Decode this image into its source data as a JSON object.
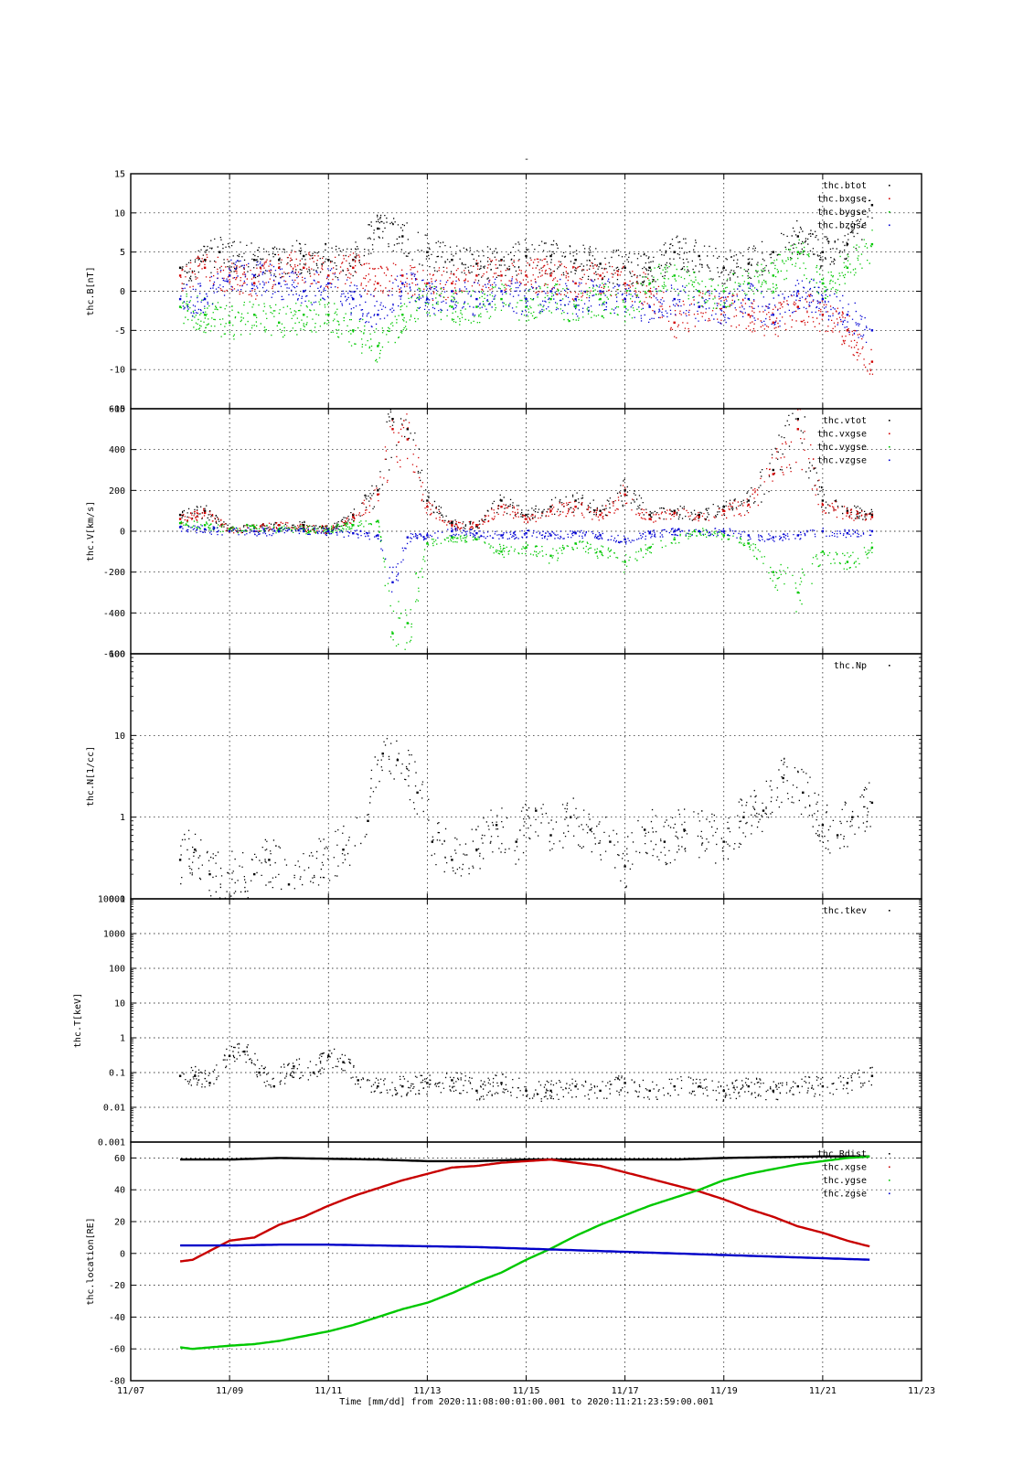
{
  "figure": {
    "title": "-",
    "x_axis_label": "Time [mm/dd]  from 2020:11:08:00:01:00.001  to  2020:11:21:23:59:00.001",
    "x_ticks": [
      "11/07",
      "11/09",
      "11/11",
      "11/13",
      "11/15",
      "11/17",
      "11/19",
      "11/21",
      "11/23"
    ],
    "x_tick_days": [
      7,
      9,
      11,
      13,
      15,
      17,
      19,
      21,
      23
    ],
    "x_range_days": [
      7,
      23
    ],
    "data_range_days": [
      8.0,
      22.0
    ]
  },
  "chart_data": [
    {
      "type": "scatter",
      "ylabel": "thc.B[nT]",
      "ylim": [
        -15,
        15
      ],
      "yscale": "linear",
      "yticks": [
        -15,
        -10,
        -5,
        0,
        5,
        10,
        15
      ],
      "ytick_labels": [
        "-15",
        "-10",
        "-5",
        "0",
        "5",
        "10",
        "15"
      ],
      "grid": true,
      "legend_position": "top-right",
      "x_unit": "day of November 2020",
      "series": [
        {
          "name": "thc.btot",
          "color": "#000000",
          "x": [
            8.0,
            8.5,
            8.8,
            9.5,
            10.0,
            10.5,
            11.0,
            11.5,
            12.0,
            12.5,
            13.0,
            13.5,
            14.0,
            14.5,
            15.0,
            15.5,
            16.0,
            16.5,
            17.0,
            17.5,
            18.0,
            18.5,
            19.0,
            19.5,
            20.0,
            20.5,
            21.0,
            21.5,
            22.0
          ],
          "y": [
            3,
            4,
            5,
            4,
            4,
            4.5,
            4,
            4,
            8,
            7,
            5,
            4,
            3.5,
            4,
            4.5,
            4.5,
            4,
            3.5,
            3,
            3,
            5,
            4.5,
            3,
            3.5,
            5,
            7,
            5,
            6,
            11
          ]
        },
        {
          "name": "thc.bxgse",
          "color": "#d10000",
          "x": [
            8.0,
            8.5,
            9.0,
            9.5,
            10.0,
            10.5,
            11.0,
            11.5,
            12.0,
            12.5,
            13.0,
            13.5,
            14.0,
            14.5,
            15.0,
            15.5,
            16.0,
            16.5,
            17.0,
            17.5,
            18.0,
            18.5,
            19.0,
            19.5,
            20.0,
            20.5,
            21.0,
            21.5,
            22.0
          ],
          "y": [
            2,
            3,
            2,
            1,
            3,
            3,
            2,
            3,
            1,
            2,
            1,
            1,
            2,
            2,
            2,
            2,
            1,
            2,
            1,
            0,
            -4,
            -2,
            -2,
            -3,
            -4,
            -2,
            -3,
            -5,
            -9
          ]
        },
        {
          "name": "thc.bygse",
          "color": "#00c800",
          "x": [
            8.0,
            8.5,
            9.0,
            9.5,
            10.0,
            10.5,
            11.0,
            11.5,
            12.0,
            12.5,
            13.0,
            13.5,
            14.0,
            14.5,
            15.0,
            15.5,
            16.0,
            16.5,
            17.0,
            17.5,
            18.0,
            18.5,
            19.0,
            19.5,
            20.0,
            20.5,
            21.0,
            21.5,
            22.0
          ],
          "y": [
            -2,
            -3,
            -4,
            -3,
            -4,
            -3,
            -3,
            -5,
            -7,
            -3,
            -1,
            -2,
            -2,
            -1,
            -2,
            -1,
            -2,
            -1,
            -2,
            1,
            2,
            0,
            0,
            1,
            2,
            5,
            1,
            3,
            6
          ]
        },
        {
          "name": "thc.bzgse",
          "color": "#0000d2",
          "x": [
            8.0,
            8.5,
            9.0,
            9.5,
            10.0,
            10.5,
            11.0,
            11.5,
            12.0,
            12.5,
            13.0,
            13.5,
            14.0,
            14.5,
            15.0,
            15.5,
            16.0,
            16.5,
            17.0,
            17.5,
            18.0,
            18.5,
            19.0,
            19.5,
            20.0,
            20.5,
            21.0,
            21.5,
            22.0
          ],
          "y": [
            -1,
            -1,
            2,
            2,
            1,
            0,
            1,
            -1,
            -3,
            1,
            -1,
            0,
            -1,
            0,
            -1,
            0,
            -1,
            0,
            -1,
            -2,
            -1,
            -2,
            -2,
            -1,
            -3,
            0,
            -1,
            -3,
            -5
          ]
        }
      ]
    },
    {
      "type": "scatter",
      "ylabel": "thc.V[km/s]",
      "ylim": [
        -600,
        600
      ],
      "yscale": "linear",
      "yticks": [
        -600,
        -400,
        -200,
        0,
        200,
        400,
        600
      ],
      "ytick_labels": [
        "-600",
        "-400",
        "-200",
        "0",
        "200",
        "400",
        "600"
      ],
      "grid": true,
      "legend_position": "top-right",
      "x_unit": "day of November 2020",
      "series": [
        {
          "name": "thc.vtot",
          "color": "#000000",
          "x": [
            8.0,
            8.5,
            9.0,
            9.5,
            10.0,
            10.5,
            11.0,
            11.5,
            12.0,
            12.3,
            12.6,
            13.0,
            13.5,
            14.0,
            14.5,
            15.0,
            15.5,
            16.0,
            16.5,
            17.0,
            17.5,
            18.0,
            18.5,
            19.0,
            19.5,
            20.0,
            20.5,
            21.0,
            21.5,
            22.0
          ],
          "y": [
            80,
            100,
            10,
            20,
            30,
            30,
            10,
            80,
            200,
            550,
            500,
            150,
            40,
            30,
            150,
            80,
            120,
            150,
            100,
            200,
            80,
            100,
            80,
            120,
            150,
            300,
            550,
            150,
            100,
            80
          ]
        },
        {
          "name": "thc.vxgse",
          "color": "#d10000",
          "x": [
            8.0,
            8.5,
            9.0,
            9.5,
            10.0,
            10.5,
            11.0,
            11.5,
            12.0,
            12.3,
            12.6,
            13.0,
            13.5,
            14.0,
            14.5,
            15.0,
            15.5,
            16.0,
            16.5,
            17.0,
            17.5,
            18.0,
            18.5,
            19.0,
            19.5,
            20.0,
            20.5,
            21.0,
            21.5,
            22.0
          ],
          "y": [
            60,
            90,
            10,
            20,
            30,
            20,
            10,
            70,
            180,
            500,
            450,
            120,
            30,
            30,
            120,
            60,
            100,
            120,
            80,
            180,
            60,
            90,
            70,
            100,
            130,
            280,
            500,
            130,
            90,
            70
          ]
        },
        {
          "name": "thc.vygse",
          "color": "#00c800",
          "x": [
            8.0,
            8.5,
            9.0,
            9.5,
            10.0,
            10.5,
            11.0,
            11.5,
            12.0,
            12.3,
            12.6,
            13.0,
            13.5,
            14.0,
            14.5,
            15.0,
            15.5,
            16.0,
            16.5,
            17.0,
            17.5,
            18.0,
            18.5,
            19.0,
            19.5,
            20.0,
            20.5,
            21.0,
            21.5,
            22.0
          ],
          "y": [
            40,
            30,
            10,
            20,
            10,
            10,
            10,
            30,
            50,
            -500,
            -450,
            -60,
            -30,
            -40,
            -100,
            -80,
            -120,
            -60,
            -100,
            -150,
            -80,
            -40,
            0,
            -20,
            -60,
            -200,
            -300,
            -100,
            -150,
            -80
          ]
        },
        {
          "name": "thc.vzgse",
          "color": "#0000d2",
          "x": [
            8.0,
            8.5,
            9.0,
            9.5,
            10.0,
            10.5,
            11.0,
            11.5,
            12.0,
            12.3,
            12.6,
            13.0,
            13.5,
            14.0,
            14.5,
            15.0,
            15.5,
            16.0,
            16.5,
            17.0,
            17.5,
            18.0,
            18.5,
            19.0,
            19.5,
            20.0,
            20.5,
            21.0,
            21.5,
            22.0
          ],
          "y": [
            20,
            10,
            0,
            0,
            0,
            0,
            0,
            -10,
            -20,
            -250,
            -30,
            -20,
            0,
            -10,
            -20,
            -10,
            -20,
            -10,
            -20,
            -40,
            -10,
            0,
            0,
            0,
            -20,
            -30,
            -20,
            0,
            -10,
            0
          ]
        }
      ]
    },
    {
      "type": "scatter",
      "ylabel": "thc.N[1/cc]",
      "ylim": [
        0.1,
        100
      ],
      "yscale": "log",
      "yticks": [
        0.1,
        1,
        10,
        100
      ],
      "ytick_labels": [
        "0.1",
        "1",
        "10",
        "100"
      ],
      "grid": true,
      "legend_position": "top-right",
      "x_unit": "day of November 2020",
      "series": [
        {
          "name": "thc.Np",
          "color": "#000000",
          "x": [
            8.0,
            8.3,
            8.6,
            9.5,
            9.8,
            10.2,
            11.3,
            11.8,
            12.1,
            12.4,
            12.8,
            13.1,
            13.5,
            14.0,
            14.4,
            14.8,
            15.2,
            15.5,
            15.9,
            16.3,
            16.7,
            17.0,
            17.4,
            17.8,
            18.2,
            19.0,
            19.4,
            19.8,
            20.2,
            20.6,
            21.0,
            21.3,
            21.6,
            22.0
          ],
          "y": [
            0.3,
            0.4,
            0.2,
            0.2,
            0.3,
            0.15,
            0.4,
            0.9,
            6,
            5,
            2,
            0.5,
            0.3,
            0.4,
            0.8,
            0.5,
            1.2,
            0.6,
            1.0,
            0.7,
            0.5,
            0.25,
            0.7,
            0.5,
            0.7,
            0.5,
            1.0,
            1.2,
            3,
            2,
            0.8,
            0.6,
            1.0,
            1.5
          ]
        }
      ]
    },
    {
      "type": "scatter",
      "ylabel": "thc.T[keV]",
      "ylim": [
        0.001,
        10000
      ],
      "yscale": "log",
      "yticks": [
        0.001,
        0.01,
        0.1,
        1,
        10,
        100,
        1000,
        10000
      ],
      "ytick_labels": [
        "0.001",
        "0.01",
        "0.1",
        "1",
        "10",
        "100",
        "1000",
        "10000"
      ],
      "grid": true,
      "legend_position": "top-right",
      "x_unit": "day of November 2020",
      "series": [
        {
          "name": "thc.tkev",
          "color": "#000000",
          "x": [
            8.0,
            8.3,
            8.6,
            9.0,
            9.3,
            9.6,
            9.9,
            10.3,
            10.7,
            11.0,
            11.3,
            11.6,
            12.0,
            12.5,
            13.0,
            13.5,
            14.0,
            14.5,
            15.0,
            15.5,
            16.0,
            16.5,
            17.0,
            17.5,
            18.0,
            18.5,
            19.0,
            19.5,
            20.0,
            20.5,
            21.0,
            21.5,
            22.0
          ],
          "y": [
            0.08,
            0.08,
            0.05,
            0.3,
            0.4,
            0.1,
            0.04,
            0.15,
            0.1,
            0.3,
            0.2,
            0.06,
            0.04,
            0.04,
            0.05,
            0.06,
            0.03,
            0.05,
            0.03,
            0.03,
            0.04,
            0.03,
            0.05,
            0.03,
            0.04,
            0.04,
            0.03,
            0.04,
            0.03,
            0.04,
            0.04,
            0.05,
            0.08
          ]
        }
      ]
    },
    {
      "type": "line",
      "ylabel": "thc.location[RE]",
      "ylim": [
        -80,
        70
      ],
      "yscale": "linear",
      "yticks": [
        -80,
        -60,
        -40,
        -20,
        0,
        20,
        40,
        60
      ],
      "ytick_labels": [
        "-80",
        "-60",
        "-40",
        "-20",
        "0",
        "20",
        "40",
        "60"
      ],
      "grid": true,
      "legend_position": "top-right",
      "x_unit": "day of November 2020",
      "series": [
        {
          "name": "thc.Rdist",
          "color": "#000000",
          "x": [
            8.0,
            9.0,
            10.0,
            11.0,
            12.0,
            13.0,
            14.0,
            15.0,
            16.0,
            17.0,
            18.0,
            19.0,
            20.0,
            21.0,
            22.0
          ],
          "y": [
            59,
            59,
            60,
            59.5,
            59,
            58,
            58,
            59,
            59,
            59,
            59,
            60,
            60.5,
            61,
            61
          ]
        },
        {
          "name": "thc.xgse",
          "color": "#c80000",
          "x": [
            8.0,
            8.25,
            9.0,
            9.5,
            10.0,
            10.5,
            11.0,
            11.5,
            12.0,
            12.5,
            13.0,
            13.5,
            14.0,
            14.5,
            15.0,
            15.5,
            16.0,
            16.5,
            17.0,
            17.5,
            18.0,
            18.5,
            19.0,
            19.5,
            20.0,
            20.5,
            21.0,
            21.5,
            22.0
          ],
          "y": [
            -5,
            -4,
            8,
            10,
            18,
            23,
            30,
            36,
            41,
            46,
            50,
            54,
            55,
            57,
            58,
            59,
            57,
            55,
            51,
            47,
            43,
            39,
            34,
            28,
            23,
            17,
            13,
            8,
            4
          ]
        },
        {
          "name": "thc.ygse",
          "color": "#00c800",
          "x": [
            8.0,
            8.25,
            9.0,
            9.5,
            10.0,
            10.5,
            11.0,
            11.5,
            12.0,
            12.5,
            13.0,
            13.5,
            14.0,
            14.5,
            15.0,
            15.5,
            16.0,
            16.5,
            17.0,
            17.5,
            18.0,
            18.5,
            19.0,
            19.5,
            20.0,
            20.5,
            21.0,
            21.5,
            22.0
          ],
          "y": [
            -59,
            -60,
            -58,
            -57,
            -55,
            -52,
            -49,
            -45,
            -40,
            -35,
            -31,
            -25,
            -18,
            -12,
            -4,
            3,
            11,
            18,
            24,
            30,
            35,
            40,
            46,
            50,
            53,
            56,
            58,
            60,
            61
          ]
        },
        {
          "name": "thc.zgse",
          "color": "#0000c8",
          "x": [
            8.0,
            9.0,
            10.0,
            11.0,
            12.0,
            13.0,
            14.0,
            15.0,
            16.0,
            17.0,
            18.0,
            19.0,
            20.0,
            21.0,
            22.0
          ],
          "y": [
            5,
            5,
            5.5,
            5.5,
            5,
            4.5,
            4,
            3,
            2,
            1,
            0,
            -1,
            -2,
            -3,
            -4
          ]
        }
      ]
    }
  ]
}
